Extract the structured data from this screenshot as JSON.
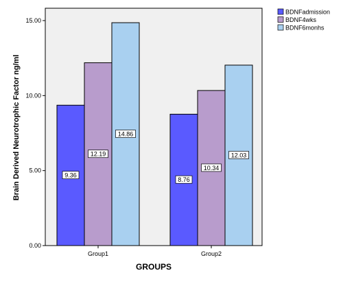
{
  "chart_data": {
    "type": "bar",
    "categories": [
      "Group1",
      "Group2"
    ],
    "series": [
      {
        "name": "BDNFadmission",
        "values": [
          9.36,
          8.76
        ],
        "color": "#5a5aff"
      },
      {
        "name": "BDNF4wks",
        "values": [
          12.19,
          10.34
        ],
        "color": "#b89ccc"
      },
      {
        "name": "BDNF6monhs",
        "values": [
          14.86,
          12.03
        ],
        "color": "#a9d0f0"
      }
    ],
    "data_labels": [
      [
        "9.36",
        "12.19",
        "14.86"
      ],
      [
        "8.76",
        "10.34",
        "12.03"
      ]
    ],
    "xlabel": "GROUPS",
    "ylabel": "Brain Derived Neurotrophic Factor ng/ml",
    "ylim": [
      0,
      16
    ],
    "yticks": [
      0,
      5,
      10,
      15
    ],
    "ytick_labels": [
      "0.00",
      "5.00",
      "10.00",
      "15.00"
    ],
    "grid": false,
    "legend_position": "top-right",
    "plot_background": "#f0f0f0",
    "bar_outline": "#000000"
  }
}
